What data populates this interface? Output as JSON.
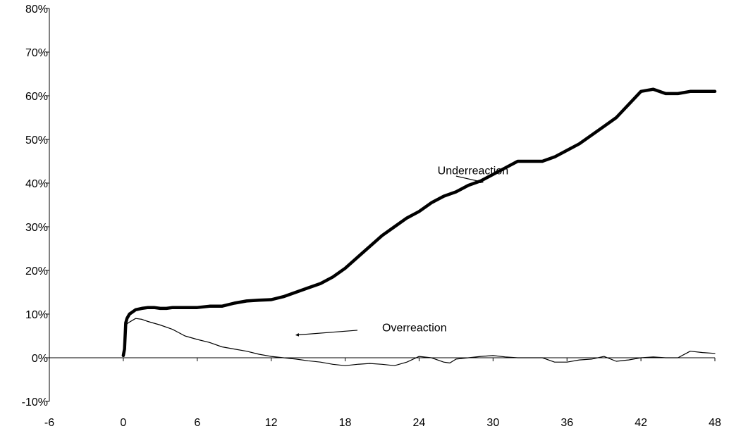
{
  "chart_data": {
    "type": "line",
    "title": "",
    "xlabel": "",
    "ylabel": "",
    "xlim": [
      -6,
      48
    ],
    "ylim": [
      -10,
      80
    ],
    "x_ticks": [
      -6,
      0,
      6,
      12,
      18,
      24,
      30,
      36,
      42,
      48
    ],
    "x_tick_labels": [
      "-6",
      "0",
      "6",
      "12",
      "18",
      "24",
      "30",
      "36",
      "42",
      "48"
    ],
    "y_ticks": [
      -10,
      0,
      10,
      20,
      30,
      40,
      50,
      60,
      70,
      80
    ],
    "y_tick_labels": [
      "-10%",
      "0%",
      "10%",
      "20%",
      "30%",
      "40%",
      "50%",
      "60%",
      "70%",
      "80%"
    ],
    "grid": false,
    "legend": "none",
    "colors": {
      "line": "#000000",
      "background": "#ffffff"
    },
    "series": [
      {
        "id": "underreaction",
        "stroke_weight": "thick",
        "x": [
          0,
          0.1,
          0.2,
          0.3,
          0.5,
          1,
          1.5,
          2,
          2.5,
          3,
          3.5,
          4,
          5,
          6,
          7,
          8,
          9,
          10,
          11,
          12,
          13,
          14,
          15,
          16,
          17,
          18,
          19,
          20,
          21,
          22,
          23,
          24,
          25,
          26,
          27,
          28,
          29,
          30,
          31,
          32,
          33,
          34,
          35,
          36,
          37,
          38,
          39,
          40,
          41,
          42,
          43,
          44,
          45,
          46,
          47,
          48
        ],
        "values": [
          0.5,
          2,
          8,
          9,
          10,
          11,
          11.3,
          11.5,
          11.5,
          11.3,
          11.3,
          11.5,
          11.5,
          11.5,
          11.8,
          11.8,
          12.5,
          13,
          13.2,
          13.3,
          14,
          15,
          16,
          17,
          18.5,
          20.5,
          23,
          25.5,
          28,
          30,
          32,
          33.5,
          35.5,
          37,
          38,
          39.5,
          40.5,
          42,
          43.5,
          45,
          45,
          45,
          46,
          47.5,
          49,
          51,
          53,
          55,
          58,
          61,
          61.5,
          60.5,
          60.5,
          61,
          61,
          61
        ]
      },
      {
        "id": "overreaction",
        "stroke_weight": "thin",
        "x": [
          0,
          0.1,
          0.2,
          0.4,
          0.7,
          1,
          1.5,
          2,
          3,
          4,
          5,
          6,
          7,
          8,
          9,
          10,
          11,
          12,
          13,
          14,
          15,
          16,
          17,
          18,
          19,
          20,
          21,
          22,
          23,
          24,
          25,
          26,
          26.5,
          27,
          28,
          29,
          30,
          31,
          32,
          33,
          34,
          35,
          36,
          37,
          38,
          39,
          40,
          41,
          42,
          43,
          44,
          45,
          46,
          47,
          48
        ],
        "values": [
          0.5,
          2,
          7.5,
          8,
          8.5,
          9,
          8.8,
          8.3,
          7.5,
          6.5,
          5,
          4.2,
          3.5,
          2.5,
          2,
          1.5,
          0.8,
          0.3,
          0,
          -0.3,
          -0.7,
          -1,
          -1.5,
          -1.8,
          -1.5,
          -1.3,
          -1.5,
          -1.8,
          -1,
          0.3,
          0,
          -1,
          -1.2,
          -0.3,
          0,
          0.3,
          0.5,
          0.2,
          0,
          0,
          0,
          -1,
          -1,
          -0.5,
          -0.3,
          0.3,
          -0.8,
          -0.5,
          0,
          0.2,
          0,
          0,
          1.5,
          1.2,
          1
        ]
      }
    ],
    "annotations": [
      {
        "text": "Underreaction",
        "label_at": [
          25.5,
          43
        ],
        "arrow_from": [
          27,
          41.6
        ],
        "arrow_to": [
          29.2,
          40.2
        ]
      },
      {
        "text": "Overreaction",
        "label_at": [
          21,
          7
        ],
        "arrow_from": [
          19,
          6.3
        ],
        "arrow_to": [
          14,
          5.2
        ]
      }
    ]
  }
}
